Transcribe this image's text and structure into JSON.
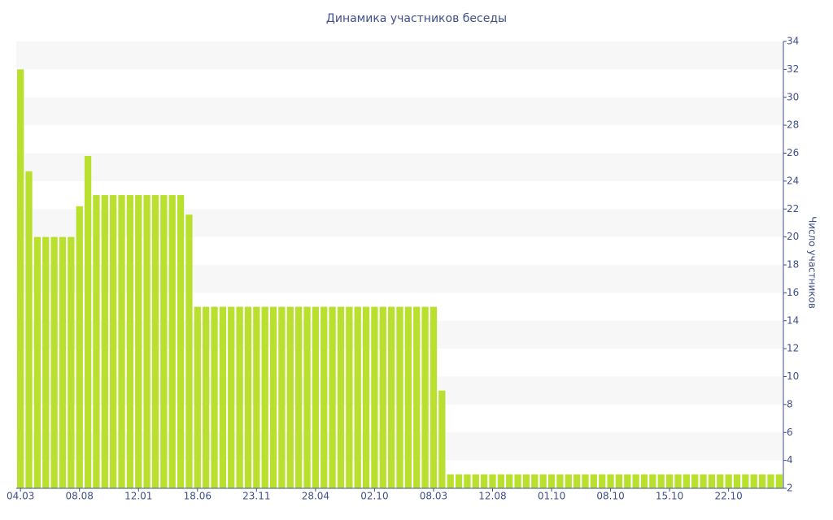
{
  "chart_data": {
    "type": "bar",
    "title": "Динамика участников беседы",
    "y_axis_label": "Число участников",
    "categories": [
      "04.03",
      null,
      null,
      null,
      null,
      null,
      null,
      "08.08",
      null,
      null,
      null,
      null,
      null,
      null,
      "12.01",
      null,
      null,
      null,
      null,
      null,
      null,
      "18.06",
      null,
      null,
      null,
      null,
      null,
      null,
      "23.11",
      null,
      null,
      null,
      null,
      null,
      null,
      "28.04",
      null,
      null,
      null,
      null,
      null,
      null,
      "02.10",
      null,
      null,
      null,
      null,
      null,
      null,
      "08.03",
      null,
      null,
      null,
      null,
      null,
      null,
      "12.08",
      null,
      null,
      null,
      null,
      null,
      null,
      "01.10",
      null,
      null,
      null,
      null,
      null,
      null,
      "08.10",
      null,
      null,
      null,
      null,
      null,
      null,
      "15.10",
      null,
      null,
      null,
      null,
      null,
      null,
      "22.10",
      null,
      null,
      null,
      null,
      null,
      null
    ],
    "values": [
      32,
      24.7,
      20,
      20,
      20,
      20,
      20,
      22.2,
      25.8,
      23,
      23,
      23,
      23,
      23,
      23,
      23,
      23,
      23,
      23,
      23,
      21.6,
      15,
      15,
      15,
      15,
      15,
      15,
      15,
      15,
      15,
      15,
      15,
      15,
      15,
      15,
      15,
      15,
      15,
      15,
      15,
      15,
      15,
      15,
      15,
      15,
      15,
      15,
      15,
      15,
      15,
      9,
      3,
      3,
      3,
      3,
      3,
      3,
      3,
      3,
      3,
      3,
      3,
      3,
      3,
      3,
      3,
      3,
      3,
      3,
      3,
      3,
      3,
      3,
      3,
      3,
      3,
      3,
      3,
      3,
      3,
      3,
      3,
      3,
      3,
      3,
      3,
      3,
      3,
      3,
      3,
      3
    ],
    "color": "#b9e02f",
    "ylim": [
      2,
      34
    ],
    "yticks": [
      2,
      4,
      6,
      8,
      10,
      12,
      14,
      16,
      18,
      20,
      22,
      24,
      26,
      28,
      30,
      32,
      34
    ],
    "grid": true,
    "y_axis_side": "right"
  }
}
